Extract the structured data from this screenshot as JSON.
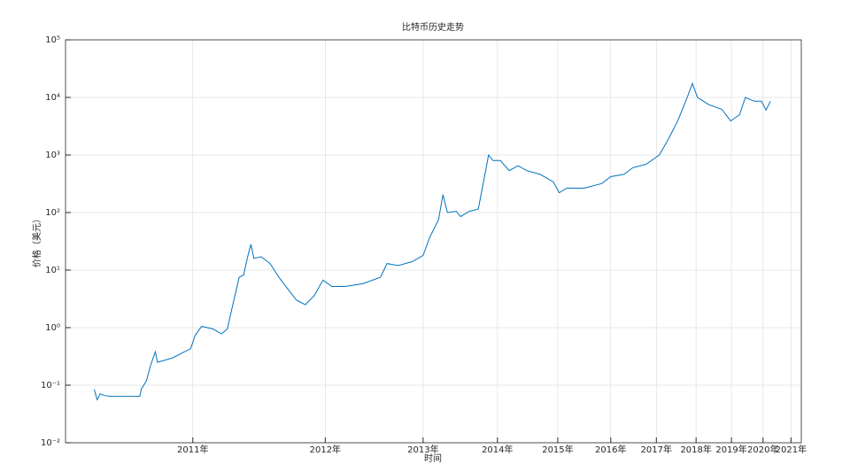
{
  "chart_data": {
    "type": "line",
    "title": "比特币历史走势",
    "x_label": "时间",
    "y_label": "价格（美元）",
    "log_y": true,
    "grid": true,
    "color": "#0072bd",
    "xlim": [
      0,
      100
    ],
    "xticks": [
      {
        "value": 17.3,
        "label": "2011年"
      },
      {
        "value": 35.3,
        "label": "2012年"
      },
      {
        "value": 48.6,
        "label": "2013年"
      },
      {
        "value": 58.7,
        "label": "2014年"
      },
      {
        "value": 66.9,
        "label": "2015年"
      },
      {
        "value": 74.1,
        "label": "2016年"
      },
      {
        "value": 80.3,
        "label": "2017年"
      },
      {
        "value": 85.7,
        "label": "2018年"
      },
      {
        "value": 90.5,
        "label": "2019年"
      },
      {
        "value": 94.8,
        "label": "2020年"
      },
      {
        "value": 98.6,
        "label": "2021年"
      }
    ],
    "ylim": [
      0.01,
      100000
    ],
    "yticks": [
      {
        "value": 0.01,
        "label": "10⁻²"
      },
      {
        "value": 0.1,
        "label": "10⁻¹"
      },
      {
        "value": 1,
        "label": "10⁰"
      },
      {
        "value": 10,
        "label": "10¹"
      },
      {
        "value": 100,
        "label": "10²"
      },
      {
        "value": 1000,
        "label": "10³"
      },
      {
        "value": 10000,
        "label": "10⁴"
      },
      {
        "value": 100000,
        "label": "10⁵"
      }
    ],
    "x": [
      3.9,
      4.3,
      4.7,
      5.3,
      6.1,
      7.3,
      9.1,
      10.1,
      10.3,
      11.0,
      11.6,
      12.2,
      12.5,
      13.4,
      14.6,
      15.8,
      17.0,
      17.6,
      18.5,
      20.0,
      21.2,
      22.0,
      22.6,
      23.6,
      24.2,
      24.8,
      25.2,
      25.6,
      26.6,
      27.8,
      29.0,
      30.2,
      31.4,
      32.6,
      33.8,
      35.0,
      36.2,
      38.0,
      40.4,
      42.8,
      43.7,
      45.2,
      47.1,
      48.6,
      49.5,
      50.7,
      51.3,
      51.9,
      53.1,
      53.7,
      54.9,
      56.1,
      57.0,
      57.5,
      58.1,
      59.1,
      60.3,
      61.5,
      62.7,
      64.5,
      66.3,
      67.1,
      68.1,
      70.5,
      72.9,
      74.1,
      75.9,
      77.1,
      78.9,
      80.7,
      81.9,
      83.2,
      84.4,
      85.2,
      85.9,
      87.4,
      89.2,
      90.4,
      91.6,
      92.4,
      93.6,
      94.6,
      95.2,
      95.8
    ],
    "values": [
      0.085,
      0.056,
      0.071,
      0.066,
      0.064,
      0.064,
      0.064,
      0.064,
      0.085,
      0.12,
      0.23,
      0.38,
      0.25,
      0.27,
      0.3,
      0.36,
      0.43,
      0.73,
      1.05,
      0.95,
      0.78,
      0.95,
      2.1,
      7.5,
      8.2,
      18,
      28,
      16,
      17,
      13,
      7.5,
      4.7,
      3.0,
      2.5,
      3.6,
      6.7,
      5.2,
      5.2,
      5.8,
      7.5,
      13,
      12,
      14,
      18,
      37,
      75,
      205,
      100,
      105,
      85,
      105,
      115,
      460,
      1000,
      800,
      800,
      535,
      650,
      535,
      460,
      340,
      220,
      265,
      265,
      320,
      420,
      460,
      600,
      690,
      1000,
      1850,
      3900,
      9300,
      17500,
      10000,
      7500,
      6200,
      3900,
      5000,
      10000,
      8600,
      8600,
      6000,
      8600
    ]
  }
}
